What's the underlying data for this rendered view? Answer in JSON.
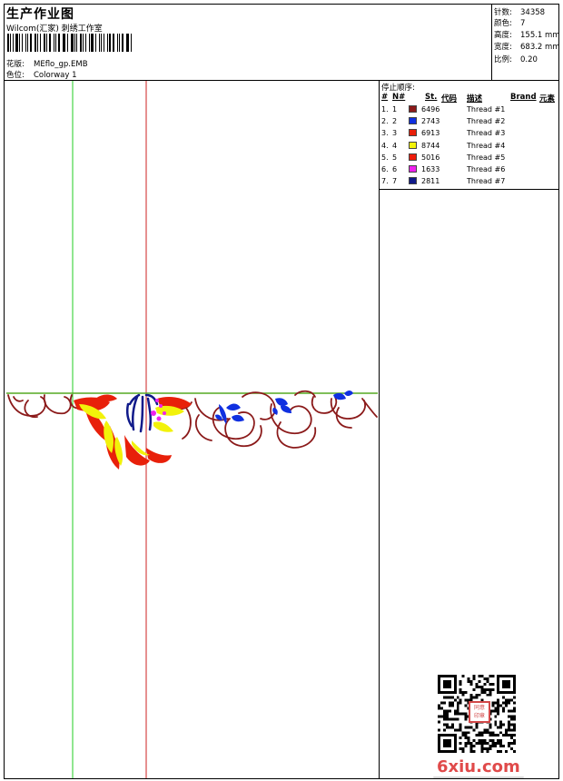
{
  "header": {
    "title": "生产作业图",
    "subtitle": "Wilcom(汇家) 刺绣工作室",
    "design_label": "花版:",
    "design_value": "MEflo_gp.EMB",
    "colorway_label": "色位:",
    "colorway_value": "Colorway 1"
  },
  "stats": [
    {
      "label": "针数:",
      "value": "34358"
    },
    {
      "label": "颜色:",
      "value": "7"
    },
    {
      "label": "高度:",
      "value": "155.1 mm"
    },
    {
      "label": "宽度:",
      "value": "683.2 mm"
    },
    {
      "label": "比例:",
      "value": "0.20"
    }
  ],
  "thread_table": {
    "title": "停止顺序:",
    "headers": [
      "#",
      "N#",
      "St.",
      "代码",
      "描述",
      "Brand",
      "元素"
    ],
    "rows": [
      {
        "num": "1.",
        "n": "1",
        "color": "#8b1a1a",
        "code": "6496",
        "desc": "Thread #1"
      },
      {
        "num": "2.",
        "n": "2",
        "color": "#1030e0",
        "code": "2743",
        "desc": "Thread #2"
      },
      {
        "num": "3.",
        "n": "3",
        "color": "#e8200a",
        "code": "6913",
        "desc": "Thread #3"
      },
      {
        "num": "4.",
        "n": "4",
        "color": "#f2f20a",
        "code": "8744",
        "desc": "Thread #4"
      },
      {
        "num": "5.",
        "n": "5",
        "color": "#ee1c0c",
        "code": "5016",
        "desc": "Thread #5"
      },
      {
        "num": "6.",
        "n": "6",
        "color": "#ee22ee",
        "code": "1633",
        "desc": "Thread #6"
      },
      {
        "num": "7.",
        "n": "7",
        "color": "#101a8a",
        "code": "2811",
        "desc": "Thread #7"
      }
    ]
  },
  "guides": {
    "vertical_green": "#22cc22",
    "vertical_red": "#cc2222",
    "horizontal": "#55aa22"
  },
  "seal_text": "同意印章",
  "watermark": "6xiu.com"
}
